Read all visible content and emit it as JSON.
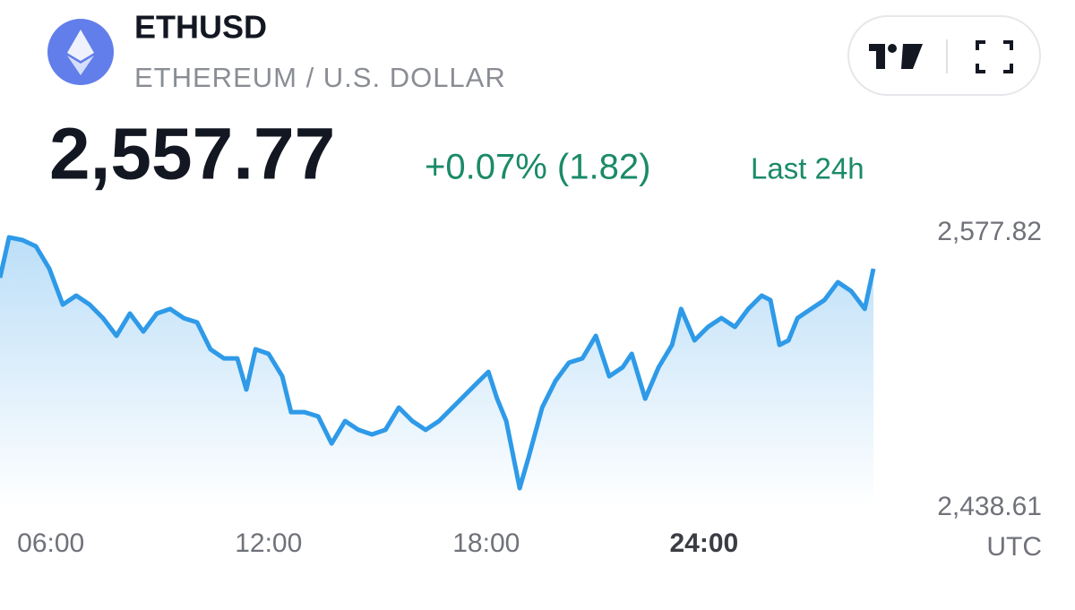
{
  "header": {
    "symbol": "ETHUSD",
    "name": "ETHEREUM / U.S. DOLLAR",
    "price": "2,557.77",
    "change": "+0.07% (1.82)",
    "period": "Last 24h"
  },
  "chart_data": {
    "type": "line",
    "color": "#2e9ae8",
    "xlabel": "UTC",
    "x": [
      4.6,
      4.85,
      5.22,
      5.59,
      5.96,
      6.33,
      6.7,
      7.07,
      7.44,
      7.81,
      8.18,
      8.55,
      8.92,
      9.29,
      9.66,
      10.03,
      10.4,
      10.77,
      11.14,
      11.39,
      11.64,
      12.0,
      12.38,
      12.62,
      12.99,
      13.37,
      13.74,
      14.11,
      14.48,
      14.85,
      15.22,
      15.59,
      15.96,
      16.33,
      16.7,
      17.07,
      17.44,
      17.81,
      18.06,
      18.3,
      18.55,
      18.92,
      19.17,
      19.54,
      19.91,
      20.28,
      20.65,
      21.02,
      21.39,
      21.76,
      22.01,
      22.38,
      22.75,
      23.12,
      23.37,
      23.74,
      24.11,
      24.48,
      24.85,
      25.22,
      25.59,
      25.83,
      26.08,
      26.33,
      26.58,
      26.95,
      27.32,
      27.69,
      28.06,
      28.43,
      28.67
    ],
    "values": [
      2555.1,
      2575.6,
      2574.2,
      2571.0,
      2559.7,
      2541.5,
      2546.1,
      2541.5,
      2534.7,
      2525.7,
      2537.0,
      2527.9,
      2537.0,
      2539.3,
      2534.7,
      2532.5,
      2518.9,
      2514.3,
      2514.3,
      2498.5,
      2518.9,
      2516.6,
      2505.2,
      2487.1,
      2487.1,
      2484.9,
      2471.2,
      2482.6,
      2478.1,
      2475.8,
      2478.1,
      2489.4,
      2482.6,
      2478.1,
      2482.6,
      2489.4,
      2496.2,
      2503.0,
      2507.5,
      2493.9,
      2482.6,
      2448.6,
      2464.4,
      2489.4,
      2503.0,
      2512.1,
      2514.3,
      2525.7,
      2505.2,
      2509.8,
      2516.6,
      2493.9,
      2509.8,
      2521.1,
      2539.3,
      2523.4,
      2530.2,
      2534.7,
      2530.2,
      2539.3,
      2546.1,
      2543.8,
      2521.1,
      2523.4,
      2534.7,
      2539.3,
      2543.8,
      2552.9,
      2548.3,
      2539.3,
      2559.7
    ],
    "xlim": [
      4.6,
      28.67
    ],
    "xticks": [
      {
        "value": 6,
        "label": "06:00"
      },
      {
        "value": 12,
        "label": "12:00"
      },
      {
        "value": 18,
        "label": "18:00"
      },
      {
        "value": 24,
        "label": "24:00"
      }
    ],
    "ylim": [
      2438.61,
      2577.82
    ],
    "yticks": [
      {
        "value": 2577.82,
        "label": "2,577.82"
      },
      {
        "value": 2438.61,
        "label": "2,438.61"
      }
    ]
  }
}
